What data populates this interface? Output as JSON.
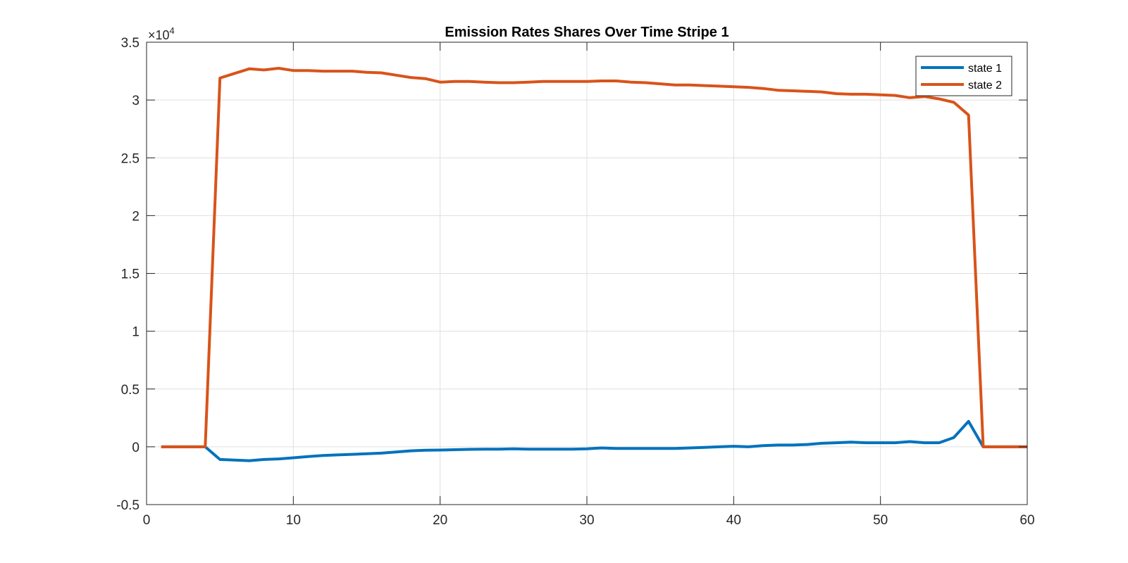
{
  "chart_data": {
    "type": "line",
    "title": "Emission Rates Shares Over Time Stripe 1",
    "xlabel": "",
    "ylabel": "",
    "xlim": [
      0,
      60
    ],
    "ylim": [
      -0.5,
      3.5
    ],
    "xticks": [
      0,
      10,
      20,
      30,
      40,
      50,
      60
    ],
    "yticks": [
      -0.5,
      0,
      0.5,
      1,
      1.5,
      2,
      2.5,
      3,
      3.5
    ],
    "x_tick_labels": [
      "0",
      "10",
      "20",
      "30",
      "40",
      "50",
      "60"
    ],
    "y_tick_labels": [
      "-0.5",
      "0",
      "0.5",
      "1",
      "1.5",
      "2",
      "2.5",
      "3",
      "3.5"
    ],
    "y_multiplier": {
      "base": "×10",
      "exponent": "4"
    },
    "grid": true,
    "legend_position": "top-right",
    "x": [
      1,
      2,
      3,
      4,
      5,
      6,
      7,
      8,
      9,
      10,
      11,
      12,
      13,
      14,
      15,
      16,
      17,
      18,
      19,
      20,
      21,
      22,
      23,
      24,
      25,
      26,
      27,
      28,
      29,
      30,
      31,
      32,
      33,
      34,
      35,
      36,
      37,
      38,
      39,
      40,
      41,
      42,
      43,
      44,
      45,
      46,
      47,
      48,
      49,
      50,
      51,
      52,
      53,
      54,
      55,
      56,
      57,
      58,
      59,
      60
    ],
    "series": [
      {
        "name": "state 1",
        "color": "#0072BD",
        "values": [
          0,
          0,
          0,
          0,
          -0.11,
          -0.115,
          -0.12,
          -0.11,
          -0.105,
          -0.095,
          -0.085,
          -0.075,
          -0.07,
          -0.065,
          -0.06,
          -0.055,
          -0.045,
          -0.035,
          -0.03,
          -0.028,
          -0.025,
          -0.022,
          -0.02,
          -0.02,
          -0.018,
          -0.02,
          -0.02,
          -0.02,
          -0.02,
          -0.018,
          -0.01,
          -0.015,
          -0.015,
          -0.015,
          -0.015,
          -0.015,
          -0.01,
          -0.005,
          0,
          0.005,
          0,
          0.01,
          0.015,
          0.015,
          0.02,
          0.03,
          0.035,
          0.04,
          0.035,
          0.035,
          0.035,
          0.045,
          0.035,
          0.035,
          0.08,
          0.22,
          0,
          0,
          0,
          0
        ]
      },
      {
        "name": "state 2",
        "color": "#D95319",
        "values": [
          0,
          0,
          0,
          0,
          3.19,
          3.23,
          3.27,
          3.26,
          3.275,
          3.255,
          3.255,
          3.25,
          3.25,
          3.25,
          3.24,
          3.235,
          3.215,
          3.195,
          3.185,
          3.155,
          3.16,
          3.16,
          3.155,
          3.15,
          3.15,
          3.155,
          3.16,
          3.16,
          3.16,
          3.16,
          3.165,
          3.165,
          3.155,
          3.15,
          3.14,
          3.13,
          3.13,
          3.125,
          3.12,
          3.115,
          3.11,
          3.1,
          3.085,
          3.08,
          3.075,
          3.07,
          3.055,
          3.05,
          3.05,
          3.045,
          3.04,
          3.02,
          3.03,
          3.01,
          2.98,
          2.87,
          0,
          0,
          0,
          0
        ]
      }
    ]
  }
}
